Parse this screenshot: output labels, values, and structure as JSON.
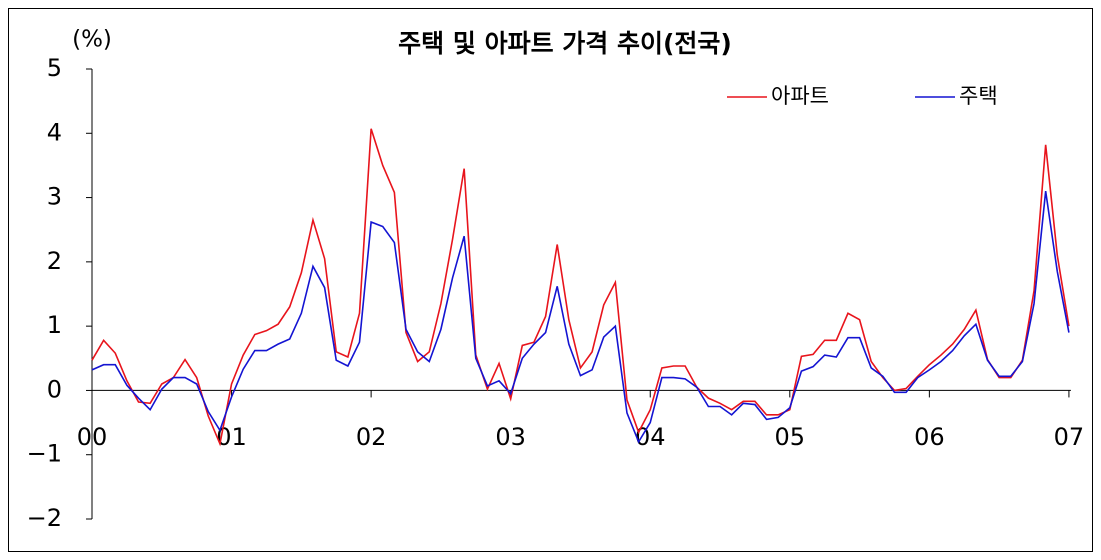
{
  "chart_data": {
    "type": "line",
    "title": "주택 및 아파트 가격 추이(전국)",
    "y_label": "(%)",
    "categories": [
      "00",
      null,
      null,
      null,
      null,
      null,
      null,
      null,
      null,
      null,
      null,
      null,
      "01",
      null,
      null,
      null,
      null,
      null,
      null,
      null,
      null,
      null,
      null,
      null,
      "02",
      null,
      null,
      null,
      null,
      null,
      null,
      null,
      null,
      null,
      null,
      null,
      "03",
      null,
      null,
      null,
      null,
      null,
      null,
      null,
      null,
      null,
      null,
      null,
      "04",
      null,
      null,
      null,
      null,
      null,
      null,
      null,
      null,
      null,
      null,
      null,
      "05",
      null,
      null,
      null,
      null,
      null,
      null,
      null,
      null,
      null,
      null,
      null,
      "06",
      null,
      null,
      null,
      null,
      null,
      null,
      null,
      null,
      null,
      null,
      null,
      "07"
    ],
    "series": [
      {
        "name": "아파트",
        "color": "#e8141c",
        "values": [
          0.47,
          0.78,
          0.58,
          0.15,
          -0.18,
          -0.2,
          0.1,
          0.2,
          0.48,
          0.2,
          -0.4,
          -0.83,
          0.1,
          0.55,
          0.87,
          0.93,
          1.03,
          1.3,
          1.83,
          2.65,
          2.05,
          0.6,
          0.52,
          1.2,
          4.07,
          3.5,
          3.08,
          0.9,
          0.45,
          0.6,
          1.35,
          2.35,
          3.45,
          0.55,
          0.02,
          0.42,
          -0.13,
          0.7,
          0.75,
          1.15,
          2.27,
          1.1,
          0.35,
          0.6,
          1.33,
          1.68,
          -0.15,
          -0.65,
          -0.3,
          0.35,
          0.38,
          0.38,
          0.05,
          -0.12,
          -0.2,
          -0.3,
          -0.17,
          -0.17,
          -0.38,
          -0.38,
          -0.3,
          0.53,
          0.56,
          0.78,
          0.78,
          1.2,
          1.1,
          0.45,
          0.2,
          0.0,
          0.03,
          0.22,
          0.4,
          0.55,
          0.72,
          0.95,
          1.25,
          0.48,
          0.2,
          0.2,
          0.47,
          1.55,
          3.82,
          2.1,
          1.0
        ]
      },
      {
        "name": "주택",
        "color": "#1414d2",
        "values": [
          0.32,
          0.4,
          0.4,
          0.08,
          -0.12,
          -0.3,
          0.02,
          0.2,
          0.2,
          0.1,
          -0.33,
          -0.62,
          -0.1,
          0.33,
          0.62,
          0.62,
          0.72,
          0.8,
          1.2,
          1.93,
          1.6,
          0.47,
          0.38,
          0.75,
          2.62,
          2.55,
          2.3,
          0.95,
          0.6,
          0.45,
          0.95,
          1.75,
          2.4,
          0.5,
          0.07,
          0.15,
          -0.05,
          0.5,
          0.72,
          0.9,
          1.62,
          0.72,
          0.23,
          0.32,
          0.83,
          1.0,
          -0.35,
          -0.8,
          -0.5,
          0.2,
          0.2,
          0.18,
          0.05,
          -0.25,
          -0.25,
          -0.38,
          -0.2,
          -0.22,
          -0.45,
          -0.42,
          -0.27,
          0.3,
          0.37,
          0.55,
          0.52,
          0.82,
          0.82,
          0.35,
          0.22,
          -0.03,
          -0.03,
          0.2,
          0.32,
          0.45,
          0.62,
          0.85,
          1.03,
          0.47,
          0.22,
          0.22,
          0.45,
          1.35,
          3.1,
          1.85,
          0.9
        ]
      }
    ],
    "ylim": [
      -2,
      5
    ],
    "yticks": [
      5,
      4,
      3,
      2,
      1,
      0,
      {
        "value": -1,
        "label": "−1"
      },
      {
        "value": -2,
        "label": "−2"
      }
    ],
    "legend": "upper right"
  }
}
